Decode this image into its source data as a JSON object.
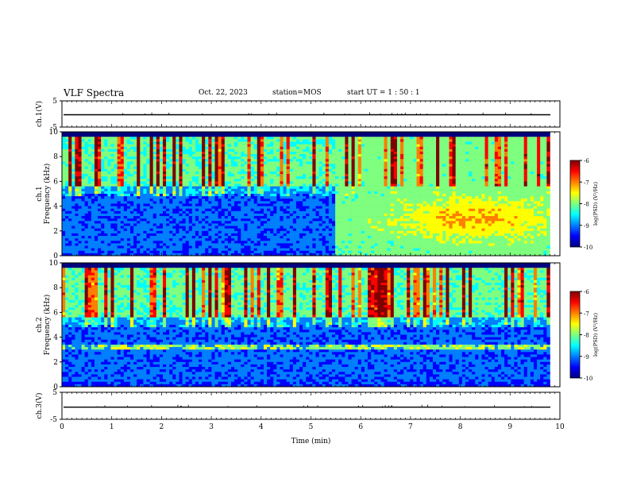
{
  "header": {
    "title": "VLF Spectra",
    "date": "Oct. 22, 2023",
    "station": "station=MOS",
    "start_ut": "start UT =  1 : 50 : 1"
  },
  "colors": {
    "jet": [
      "#00007f",
      "#0000ff",
      "#007fff",
      "#00ffff",
      "#7fff7f",
      "#ffff00",
      "#ff7f00",
      "#ff0000",
      "#7f0000"
    ],
    "background": "#000000",
    "axis": "#000000"
  },
  "chart_data": {
    "type": "heatmap",
    "x_axis": {
      "label": "Time  (min)",
      "range": [
        0,
        10
      ],
      "ticks": [
        "0",
        "1",
        "2",
        "3",
        "4",
        "5",
        "6",
        "7",
        "8",
        "9",
        "10"
      ]
    },
    "panels": [
      {
        "id": "ch1v",
        "type": "line",
        "ylabel": "ch.1(V)",
        "ylim": [
          -5,
          5
        ],
        "yticks": [
          "5",
          "-5"
        ],
        "value": -0.3
      },
      {
        "id": "ch1",
        "type": "heatmap",
        "ylabel": "ch.1\nFrequency (kHz)",
        "ylim": [
          0,
          10
        ],
        "yticks": [
          "0",
          "2",
          "4",
          "6",
          "8",
          "10"
        ],
        "data_extent_min": [
          0,
          9.8
        ],
        "colorbar": {
          "label": "log(PSD) (V²/Hz)",
          "range": [
            -10,
            -6
          ],
          "ticks": [
            "-10",
            "-9",
            "-8",
            "-7",
            "-6"
          ]
        },
        "description_values": {
          "burst_onset_min": 5.5,
          "sferic_band_khz": [
            6,
            9.5
          ]
        }
      },
      {
        "id": "ch2",
        "type": "heatmap",
        "ylabel": "ch.2\nFrequency (kHz)",
        "ylim": [
          0,
          10
        ],
        "yticks": [
          "0",
          "2",
          "4",
          "6",
          "8",
          "10"
        ],
        "data_extent_min": [
          0,
          9.8
        ],
        "colorbar": {
          "label": "log(PSD) (V²/Hz)",
          "range": [
            -10,
            -6
          ],
          "ticks": [
            "-10",
            "-9",
            "-8",
            "-7",
            "-6"
          ]
        },
        "description_values": {
          "line_khz": 3.2
        }
      },
      {
        "id": "ch3v",
        "type": "line",
        "ylabel": "ch.3(V)",
        "ylim": [
          -5,
          5
        ],
        "yticks": [
          "5",
          "-5"
        ],
        "value": -0.5
      }
    ]
  }
}
